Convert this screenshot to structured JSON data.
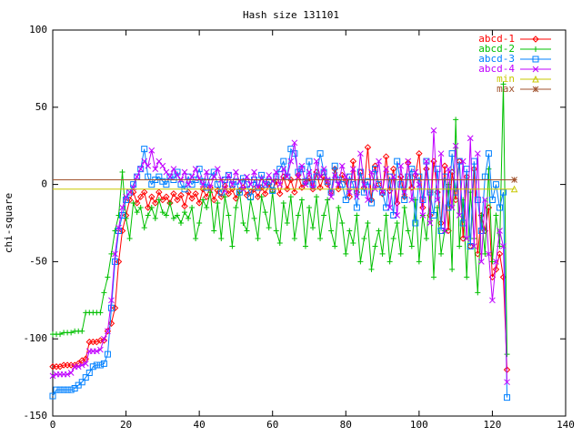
{
  "chart_data": {
    "type": "line",
    "title": "Hash size 131101",
    "y_label": "chi-square",
    "xlim": [
      0,
      140
    ],
    "xticks": [
      0,
      20,
      40,
      60,
      80,
      100,
      120,
      140
    ],
    "ylim": [
      -150,
      100
    ],
    "yticks": [
      -150,
      -100,
      -50,
      0,
      50,
      100
    ],
    "legend": "top-right",
    "grid": false,
    "x": [
      0,
      1,
      2,
      3,
      4,
      5,
      6,
      7,
      8,
      9,
      10,
      11,
      12,
      13,
      14,
      15,
      16,
      17,
      18,
      19,
      20,
      21,
      22,
      23,
      24,
      25,
      26,
      27,
      28,
      29,
      30,
      31,
      32,
      33,
      34,
      35,
      36,
      37,
      38,
      39,
      40,
      41,
      42,
      43,
      44,
      45,
      46,
      47,
      48,
      49,
      50,
      51,
      52,
      53,
      54,
      55,
      56,
      57,
      58,
      59,
      60,
      61,
      62,
      63,
      64,
      65,
      66,
      67,
      68,
      69,
      70,
      71,
      72,
      73,
      74,
      75,
      76,
      77,
      78,
      79,
      80,
      81,
      82,
      83,
      84,
      85,
      86,
      87,
      88,
      89,
      90,
      91,
      92,
      93,
      94,
      95,
      96,
      97,
      98,
      99,
      100,
      101,
      102,
      103,
      104,
      105,
      106,
      107,
      108,
      109,
      110,
      111,
      112,
      113,
      114,
      115,
      116,
      117,
      118,
      119,
      120,
      121,
      122,
      123,
      124
    ],
    "series": [
      {
        "name": "abcd-1",
        "color": "#ff0000",
        "values": [
          -118,
          -118,
          -118,
          -117,
          -117,
          -117,
          -117,
          -116,
          -114,
          -113,
          -102,
          -102,
          -102,
          -101,
          -101,
          -95,
          -90,
          -80,
          -50,
          -30,
          -20,
          -10,
          -5,
          -12,
          -8,
          -5,
          -15,
          -8,
          -12,
          -5,
          -10,
          -8,
          -12,
          -6,
          -10,
          -7,
          -14,
          -5,
          -9,
          -6,
          -12,
          -3,
          -8,
          -2,
          -10,
          -4,
          -8,
          -1,
          -6,
          -3,
          -9,
          -4,
          -2,
          -7,
          -5,
          -3,
          -8,
          -2,
          -6,
          0,
          -4,
          2,
          -6,
          5,
          -3,
          3,
          -5,
          6,
          -2,
          1,
          4,
          -3,
          8,
          -2,
          5,
          0,
          -5,
          10,
          -3,
          6,
          2,
          -8,
          15,
          -5,
          8,
          -2,
          24,
          -10,
          12,
          0,
          -6,
          18,
          -4,
          10,
          -12,
          5,
          -8,
          14,
          -2,
          6,
          20,
          -15,
          10,
          -20,
          15,
          -5,
          -25,
          12,
          -30,
          8,
          -10,
          15,
          -35,
          5,
          -40,
          10,
          -45,
          -20,
          -30,
          -15,
          -60,
          -55,
          -45,
          -60,
          -120
        ]
      },
      {
        "name": "abcd-2",
        "color": "#00c000",
        "values": [
          -97,
          -97,
          -97,
          -96,
          -96,
          -96,
          -95,
          -95,
          -95,
          -83,
          -83,
          -83,
          -83,
          -83,
          -70,
          -60,
          -45,
          -30,
          -20,
          8,
          -22,
          -35,
          -12,
          -18,
          -15,
          -28,
          -20,
          -15,
          -22,
          -10,
          -18,
          -20,
          -12,
          -22,
          -20,
          -25,
          -18,
          -22,
          -15,
          -35,
          -25,
          -10,
          -15,
          -5,
          -30,
          -12,
          -35,
          -8,
          -20,
          -40,
          -15,
          -5,
          -25,
          -30,
          -10,
          -22,
          -35,
          -8,
          -18,
          -28,
          -5,
          -30,
          -38,
          -12,
          -25,
          -8,
          -35,
          -20,
          -10,
          -40,
          -15,
          -28,
          -8,
          -35,
          -20,
          -10,
          -30,
          -40,
          -15,
          -25,
          -45,
          -30,
          -38,
          -20,
          -50,
          -35,
          -25,
          -55,
          -40,
          -30,
          -45,
          -20,
          -50,
          -35,
          -25,
          -45,
          -15,
          -30,
          -40,
          -10,
          -50,
          -20,
          -35,
          -5,
          -60,
          -15,
          -45,
          -30,
          0,
          -55,
          42,
          -40,
          -10,
          -60,
          -5,
          -35,
          -70,
          -20,
          -45,
          10,
          -50,
          -20,
          -40,
          65,
          -110
        ]
      },
      {
        "name": "abcd-3",
        "color": "#0080ff",
        "values": [
          -137,
          -133,
          -133,
          -133,
          -133,
          -133,
          -132,
          -130,
          -128,
          -125,
          -122,
          -118,
          -117,
          -117,
          -116,
          -110,
          -80,
          -50,
          -30,
          -20,
          -10,
          -5,
          0,
          5,
          10,
          23,
          5,
          0,
          3,
          5,
          2,
          0,
          5,
          3,
          8,
          0,
          -3,
          5,
          0,
          3,
          10,
          2,
          -2,
          5,
          8,
          0,
          -5,
          3,
          6,
          0,
          2,
          -5,
          4,
          0,
          -8,
          3,
          -2,
          6,
          0,
          2,
          -4,
          5,
          10,
          15,
          5,
          23,
          20,
          8,
          10,
          2,
          15,
          0,
          5,
          20,
          8,
          2,
          -5,
          12,
          3,
          0,
          -10,
          5,
          0,
          -15,
          8,
          -5,
          2,
          -12,
          10,
          0,
          -5,
          -15,
          5,
          -20,
          15,
          0,
          -10,
          5,
          10,
          -25,
          5,
          -10,
          15,
          -5,
          -20,
          10,
          -30,
          5,
          -15,
          20,
          -5,
          15,
          -25,
          10,
          -40,
          15,
          -10,
          -30,
          5,
          20,
          -10,
          0,
          -15,
          -5,
          -138
        ]
      },
      {
        "name": "abcd-4",
        "color": "#c000ff",
        "values": [
          -124,
          -123,
          -123,
          -123,
          -123,
          -122,
          -118,
          -118,
          -117,
          -116,
          -108,
          -108,
          -108,
          -107,
          -100,
          -95,
          -75,
          -45,
          -28,
          -15,
          -8,
          -5,
          -2,
          5,
          10,
          15,
          12,
          22,
          10,
          15,
          12,
          8,
          5,
          10,
          6,
          3,
          8,
          0,
          5,
          10,
          4,
          0,
          8,
          -2,
          5,
          10,
          3,
          -4,
          6,
          0,
          8,
          2,
          -3,
          5,
          0,
          8,
          -2,
          4,
          0,
          6,
          2,
          8,
          0,
          10,
          5,
          15,
          27,
          5,
          12,
          0,
          8,
          -2,
          15,
          5,
          10,
          3,
          -8,
          6,
          0,
          12,
          5,
          -5,
          10,
          -8,
          20,
          0,
          -10,
          8,
          -3,
          15,
          -5,
          10,
          -15,
          5,
          -20,
          12,
          -5,
          15,
          -10,
          8,
          0,
          -20,
          15,
          -25,
          35,
          -10,
          20,
          -30,
          10,
          -15,
          25,
          -20,
          15,
          -35,
          30,
          -40,
          20,
          -50,
          -10,
          -45,
          -75,
          -50,
          -30,
          -40,
          -128
        ]
      },
      {
        "name": "min",
        "color": "#c8c800",
        "x": [
          0,
          126
        ],
        "values": [
          -3,
          -3
        ]
      },
      {
        "name": "max",
        "color": "#a0522d",
        "x": [
          0,
          126
        ],
        "values": [
          3,
          3
        ]
      }
    ]
  }
}
